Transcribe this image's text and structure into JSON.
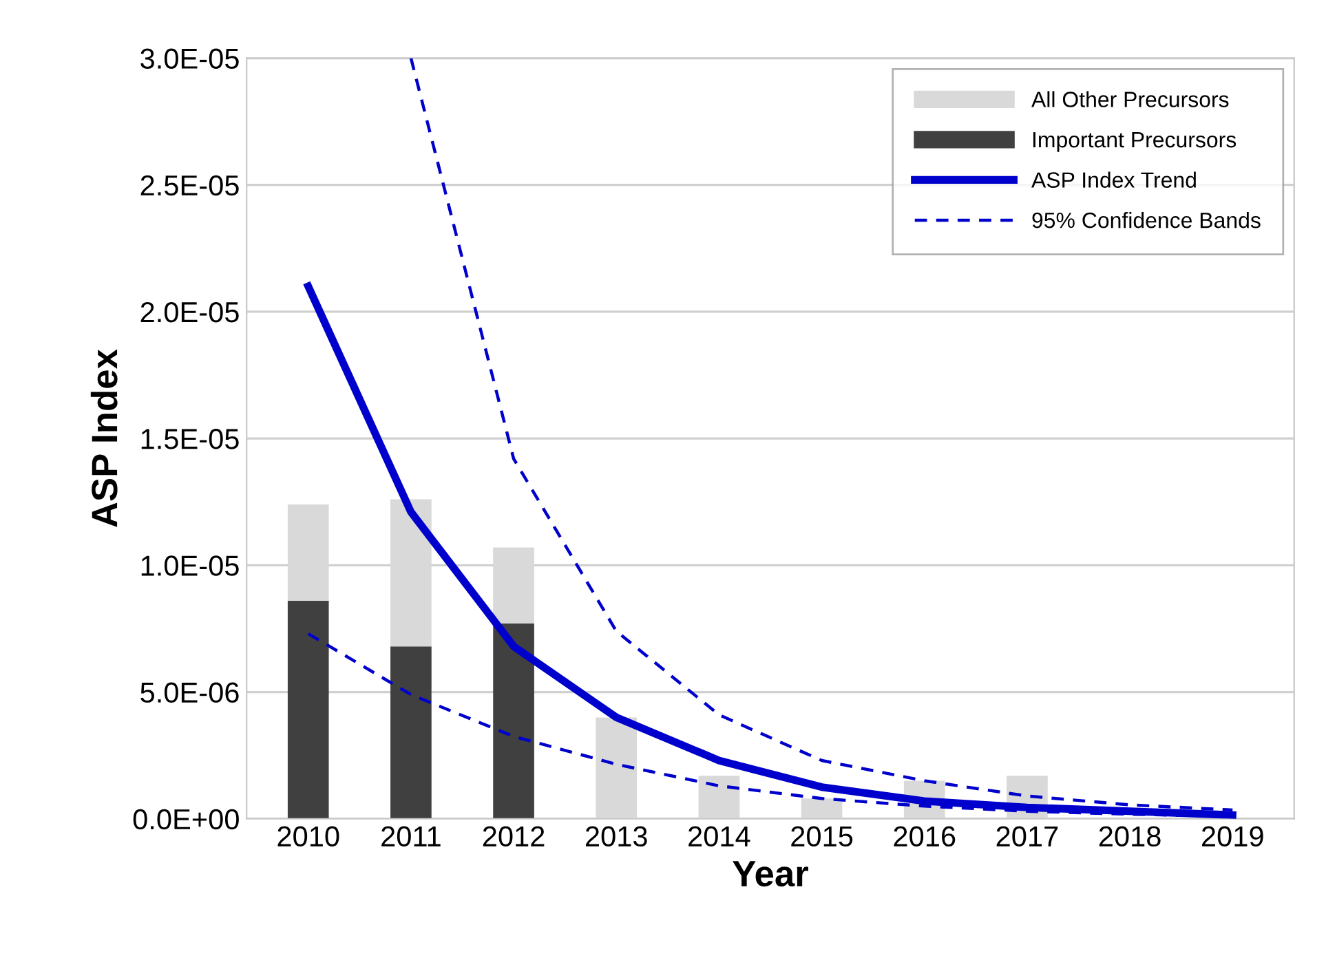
{
  "chart_data": {
    "type": "bar",
    "stacked": true,
    "xlabel": "Year",
    "ylabel": "ASP Index",
    "categories": [
      "2010",
      "2011",
      "2012",
      "2013",
      "2014",
      "2015",
      "2016",
      "2017",
      "2018",
      "2019"
    ],
    "series": [
      {
        "name": "Important Precursors",
        "color": "#404040",
        "values": [
          8.6e-06,
          6.8e-06,
          7.7e-06,
          0,
          0,
          0,
          0,
          0,
          0,
          0
        ]
      },
      {
        "name": "All Other Precursors",
        "color": "#d9d9d9",
        "values": [
          3.8e-06,
          5.8e-06,
          3e-06,
          4e-06,
          1.7e-06,
          8e-07,
          1.5e-06,
          1.7e-06,
          0,
          0
        ]
      },
      {
        "name": "ASP Index Trend",
        "type": "line",
        "color": "#0000cc",
        "line_style": "solid",
        "values": [
          2.1e-05,
          1.21e-05,
          6.8e-06,
          4e-06,
          2.3e-06,
          1.25e-06,
          7e-07,
          4.5e-07,
          3e-07,
          1.5e-07
        ]
      },
      {
        "name": "95% Confidence Bands",
        "type": "line",
        "color": "#0000cc",
        "line_style": "dashed",
        "values": [
          null,
          3e-05,
          1.42e-05,
          7.4e-06,
          4.1e-06,
          2.3e-06,
          1.5e-06,
          9e-07,
          5.5e-07,
          3.5e-07
        ]
      },
      {
        "type": "line",
        "color": "#0000cc",
        "line_style": "dashed",
        "values": [
          7.3e-06,
          4.9e-06,
          3.25e-06,
          2.15e-06,
          1.3e-06,
          8e-07,
          5e-07,
          3e-07,
          1.8e-07,
          1e-07
        ]
      }
    ],
    "ylim": [
      0,
      3e-05
    ],
    "yticks": [
      {
        "value": 0,
        "label": "0.0E+00"
      },
      {
        "value": 5e-06,
        "label": "5.0E-06"
      },
      {
        "value": 1e-05,
        "label": "1.0E-05"
      },
      {
        "value": 1.5e-05,
        "label": "1.5E-05"
      },
      {
        "value": 2e-05,
        "label": "2.0E-05"
      },
      {
        "value": 2.5e-05,
        "label": "2.5E-05"
      },
      {
        "value": 3e-05,
        "label": "3.0E-05"
      }
    ],
    "grid": "y",
    "legend": "top right"
  }
}
